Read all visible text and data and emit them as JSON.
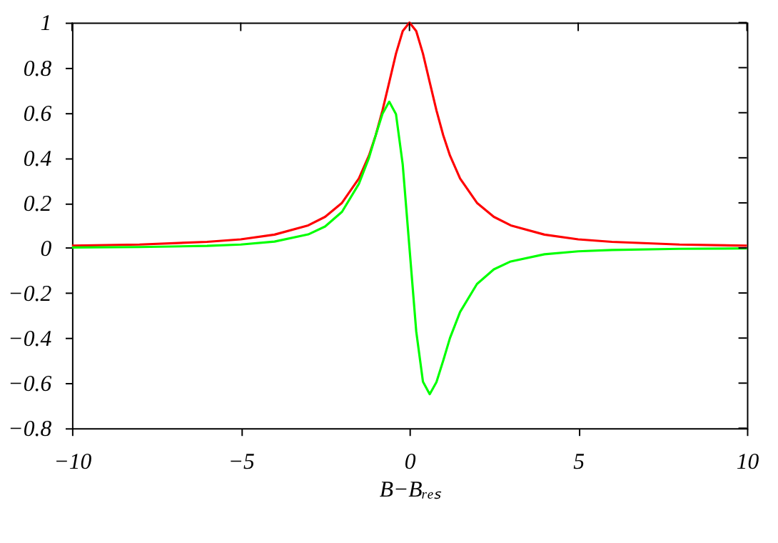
{
  "chart_data": {
    "type": "line",
    "xlabel": "B−Bᵣₑₛ",
    "x": [
      -10,
      -8,
      -6,
      -5,
      -4,
      -3,
      -2.5,
      -2,
      -1.5,
      -1.2,
      -1,
      -0.8,
      -0.6,
      -0.4,
      -0.2,
      0,
      0.2,
      0.4,
      0.6,
      0.8,
      1,
      1.2,
      1.5,
      2,
      2.5,
      3,
      4,
      5,
      6,
      8,
      10
    ],
    "series": [
      {
        "color": "#ff0000",
        "values": [
          0.01,
          0.015,
          0.027,
          0.038,
          0.059,
          0.1,
          0.138,
          0.2,
          0.308,
          0.41,
          0.5,
          0.61,
          0.735,
          0.862,
          0.962,
          1,
          0.962,
          0.862,
          0.735,
          0.61,
          0.5,
          0.41,
          0.308,
          0.2,
          0.138,
          0.1,
          0.059,
          0.038,
          0.027,
          0.015,
          0.01
        ]
      },
      {
        "color": "#00ff00",
        "values": [
          0.002,
          0.004,
          0.009,
          0.015,
          0.028,
          0.06,
          0.095,
          0.16,
          0.284,
          0.4,
          0.5,
          0.595,
          0.649,
          0.594,
          0.37,
          0,
          -0.37,
          -0.594,
          -0.649,
          -0.595,
          -0.5,
          -0.4,
          -0.284,
          -0.16,
          -0.095,
          -0.06,
          -0.028,
          -0.015,
          -0.009,
          -0.004,
          -0.002
        ]
      }
    ],
    "xlim": [
      -10,
      10
    ],
    "xticks": [
      -10,
      -5,
      0,
      5,
      10
    ],
    "ylim": [
      -0.8,
      1
    ],
    "yticks": [
      -0.8,
      -0.6,
      -0.4,
      -0.2,
      0,
      0.2,
      0.4,
      0.6,
      0.8,
      1
    ],
    "grid": false,
    "marker": "none",
    "line_style": "solid"
  }
}
